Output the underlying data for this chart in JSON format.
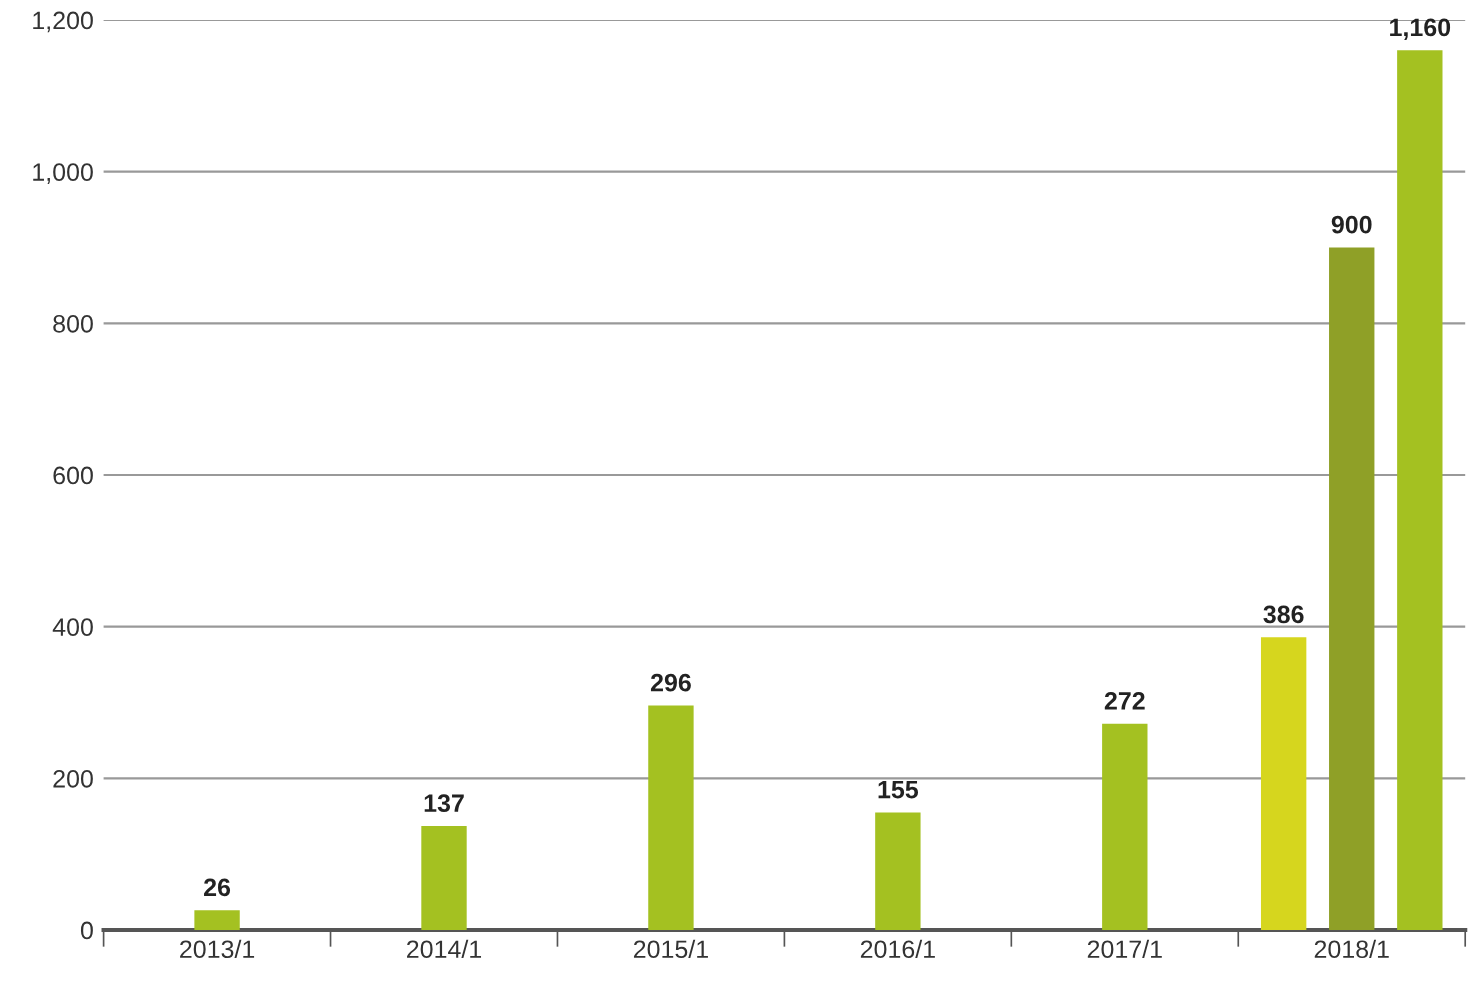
{
  "chart_data": {
    "type": "bar",
    "categories": [
      "2013/1",
      "2014/1",
      "2015/1",
      "2016/1",
      "2017/1",
      "2018/1"
    ],
    "series": [
      {
        "color": "#d6d61e",
        "values": [
          null,
          null,
          null,
          null,
          null,
          386
        ],
        "value_labels": [
          null,
          null,
          null,
          null,
          null,
          "386"
        ]
      },
      {
        "color": "#8fa027",
        "values": [
          null,
          null,
          null,
          null,
          null,
          900
        ],
        "value_labels": [
          null,
          null,
          null,
          null,
          null,
          "900"
        ]
      },
      {
        "color": "#a4c121",
        "values": [
          26,
          137,
          296,
          155,
          272,
          1160
        ],
        "value_labels": [
          "26",
          "137",
          "296",
          "155",
          "272",
          "1,160"
        ]
      }
    ],
    "ylim": [
      0,
      1200
    ],
    "yticks": [
      0,
      200,
      400,
      600,
      800,
      {
        "value": 1000,
        "label": "1,000"
      },
      {
        "value": 1200,
        "label": "1,200"
      }
    ],
    "grid": "y"
  }
}
